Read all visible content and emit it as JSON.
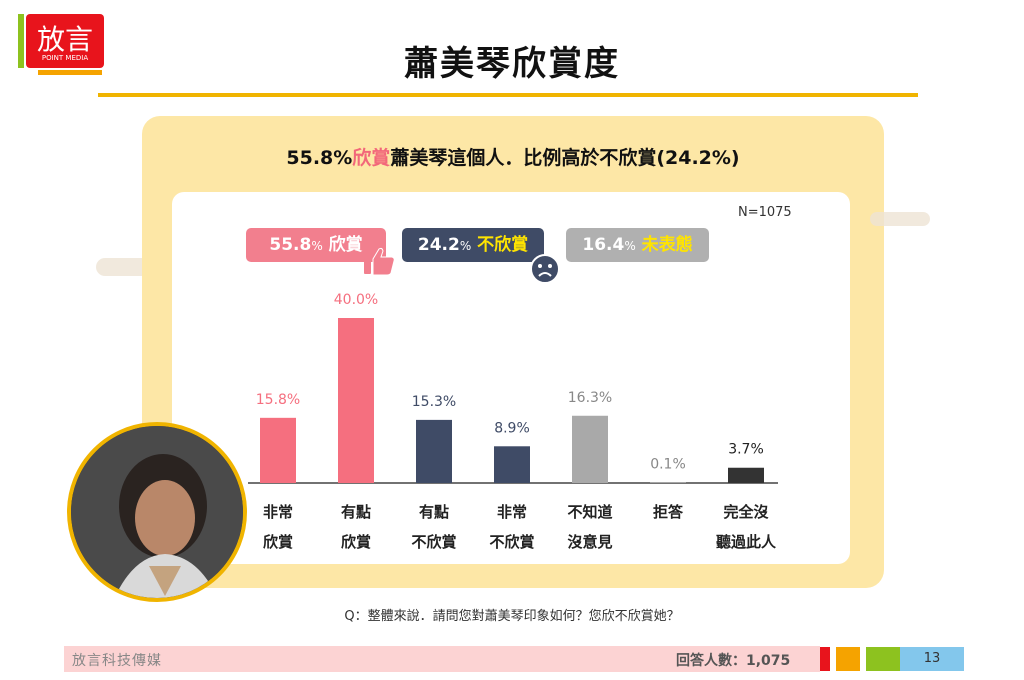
{
  "header": {
    "title": "蕭美琴欣賞度",
    "logo_text": "放言",
    "logo_subtext": "POINT MEDIA"
  },
  "subtitle": {
    "part1": "55.8%",
    "part2": "欣賞",
    "part3": "蕭美琴",
    "part4": "這個人．比例高於不欣賞(24.2%)"
  },
  "sample": "N=1075",
  "summary": [
    {
      "pct": "55.8",
      "unit": "%",
      "label": "欣賞"
    },
    {
      "pct": "24.2",
      "unit": "%",
      "label": "不欣賞"
    },
    {
      "pct": "16.4",
      "unit": "%",
      "label": "未表態"
    }
  ],
  "chart_data": {
    "type": "bar",
    "categories": [
      [
        "非常",
        "欣賞"
      ],
      [
        "有點",
        "欣賞"
      ],
      [
        "有點",
        "不欣賞"
      ],
      [
        "非常",
        "不欣賞"
      ],
      [
        "不知道",
        "沒意見"
      ],
      [
        "拒答",
        ""
      ],
      [
        "完全沒",
        "聽過此人"
      ]
    ],
    "values": [
      15.8,
      40.0,
      15.3,
      8.9,
      16.3,
      0.1,
      3.7
    ],
    "value_labels": [
      "15.8%",
      "40.0%",
      "15.3%",
      "8.9%",
      "16.3%",
      "0.1%",
      "3.7%"
    ],
    "colors": [
      "#f56f7f",
      "#f56f7f",
      "#3f4b66",
      "#3f4b66",
      "#a9a9a9",
      "#a9a9a9",
      "#333333"
    ],
    "label_colors": [
      "#f56f7f",
      "#f56f7f",
      "#3f4b66",
      "#3f4b66",
      "#888888",
      "#888888",
      "#222222"
    ],
    "ylim": [
      0,
      40
    ]
  },
  "question": "Q：整體來說．請問您對蕭美琴印象如何？您欣不欣賞她？",
  "footer": {
    "left": "放言科技傳媒",
    "right": "回答人數：1,075",
    "page": "13",
    "squares": [
      "#e8141c",
      "#f5a300",
      "#8dc21f",
      "#83c7ec"
    ]
  }
}
